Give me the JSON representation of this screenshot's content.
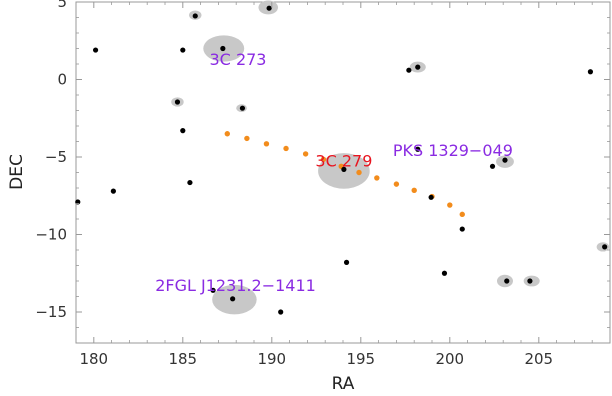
{
  "chart_data": {
    "type": "scatter",
    "xlabel": "RA",
    "ylabel": "DEC",
    "xlim": [
      179,
      209
    ],
    "ylim": [
      -17,
      5
    ],
    "xticks": [
      180,
      185,
      190,
      195,
      200,
      205
    ],
    "yticks": [
      5,
      0,
      -5,
      -10,
      -15
    ],
    "xtick_labels": [
      "180",
      "185",
      "190",
      "195",
      "200",
      "205"
    ],
    "ytick_labels": [
      "5",
      "0",
      "−5",
      "−10",
      "−15"
    ],
    "colors": {
      "points": "#000000",
      "error_regions": "#c8c8c8",
      "path": "#f28c1c",
      "source_labels": "#8a2be2",
      "highlight_label": "#e8141f",
      "frame": "#999999"
    },
    "error_regions": [
      {
        "x": 187.3,
        "y": 2.0,
        "rx": 1.15,
        "ry": 0.85
      },
      {
        "x": 194.05,
        "y": -5.9,
        "rx": 1.45,
        "ry": 1.15
      },
      {
        "x": 187.9,
        "y": -14.2,
        "rx": 1.25,
        "ry": 0.95
      },
      {
        "x": 189.8,
        "y": 4.65,
        "rx": 0.55,
        "ry": 0.45
      },
      {
        "x": 185.7,
        "y": 4.15,
        "rx": 0.35,
        "ry": 0.3
      },
      {
        "x": 198.2,
        "y": 0.8,
        "rx": 0.45,
        "ry": 0.35
      },
      {
        "x": 184.7,
        "y": -1.45,
        "rx": 0.35,
        "ry": 0.3
      },
      {
        "x": 188.3,
        "y": -1.85,
        "rx": 0.3,
        "ry": 0.25
      },
      {
        "x": 203.1,
        "y": -5.3,
        "rx": 0.5,
        "ry": 0.4
      },
      {
        "x": 203.1,
        "y": -13.0,
        "rx": 0.45,
        "ry": 0.4
      },
      {
        "x": 204.6,
        "y": -13.0,
        "rx": 0.45,
        "ry": 0.35
      },
      {
        "x": 208.6,
        "y": -10.8,
        "rx": 0.35,
        "ry": 0.3
      }
    ],
    "points": [
      {
        "x": 180.1,
        "y": 1.9
      },
      {
        "x": 179.1,
        "y": -7.9
      },
      {
        "x": 181.1,
        "y": -7.2
      },
      {
        "x": 185.0,
        "y": 1.9
      },
      {
        "x": 185.7,
        "y": 4.1
      },
      {
        "x": 187.25,
        "y": 2.0
      },
      {
        "x": 189.85,
        "y": 4.6
      },
      {
        "x": 184.7,
        "y": -1.45
      },
      {
        "x": 188.35,
        "y": -1.85
      },
      {
        "x": 185.0,
        "y": -3.3
      },
      {
        "x": 185.4,
        "y": -6.65
      },
      {
        "x": 186.7,
        "y": -13.6
      },
      {
        "x": 187.8,
        "y": -14.15
      },
      {
        "x": 190.5,
        "y": -15.0
      },
      {
        "x": 194.05,
        "y": -5.8
      },
      {
        "x": 194.2,
        "y": -11.8
      },
      {
        "x": 197.7,
        "y": 0.6
      },
      {
        "x": 198.2,
        "y": 0.8
      },
      {
        "x": 198.2,
        "y": -4.5
      },
      {
        "x": 198.95,
        "y": -7.6
      },
      {
        "x": 199.7,
        "y": -12.5
      },
      {
        "x": 200.7,
        "y": -9.65
      },
      {
        "x": 202.4,
        "y": -5.6
      },
      {
        "x": 203.1,
        "y": -5.2
      },
      {
        "x": 203.2,
        "y": -13.0
      },
      {
        "x": 204.5,
        "y": -13.0
      },
      {
        "x": 207.9,
        "y": 0.5
      },
      {
        "x": 208.7,
        "y": -10.8
      }
    ],
    "path": [
      {
        "x": 187.5,
        "y": -3.5
      },
      {
        "x": 188.6,
        "y": -3.8
      },
      {
        "x": 189.7,
        "y": -4.15
      },
      {
        "x": 190.8,
        "y": -4.45
      },
      {
        "x": 191.9,
        "y": -4.8
      },
      {
        "x": 192.9,
        "y": -5.15
      },
      {
        "x": 193.9,
        "y": -5.6
      },
      {
        "x": 194.9,
        "y": -6.0
      },
      {
        "x": 195.9,
        "y": -6.35
      },
      {
        "x": 197.0,
        "y": -6.75
      },
      {
        "x": 198.0,
        "y": -7.15
      },
      {
        "x": 199.0,
        "y": -7.55
      },
      {
        "x": 200.0,
        "y": -8.1
      },
      {
        "x": 200.7,
        "y": -8.7
      }
    ],
    "annotations": [
      {
        "text": "3C 273",
        "x": 186.5,
        "y": 0.95,
        "color": "source"
      },
      {
        "text": "3C 279",
        "x": 192.45,
        "y": -5.6,
        "color": "highlight"
      },
      {
        "text": "PKS 1329−049",
        "x": 196.8,
        "y": -4.95,
        "color": "source"
      },
      {
        "text": "2FGL J1231.2−1411",
        "x": 183.45,
        "y": -13.65,
        "color": "source"
      }
    ]
  }
}
